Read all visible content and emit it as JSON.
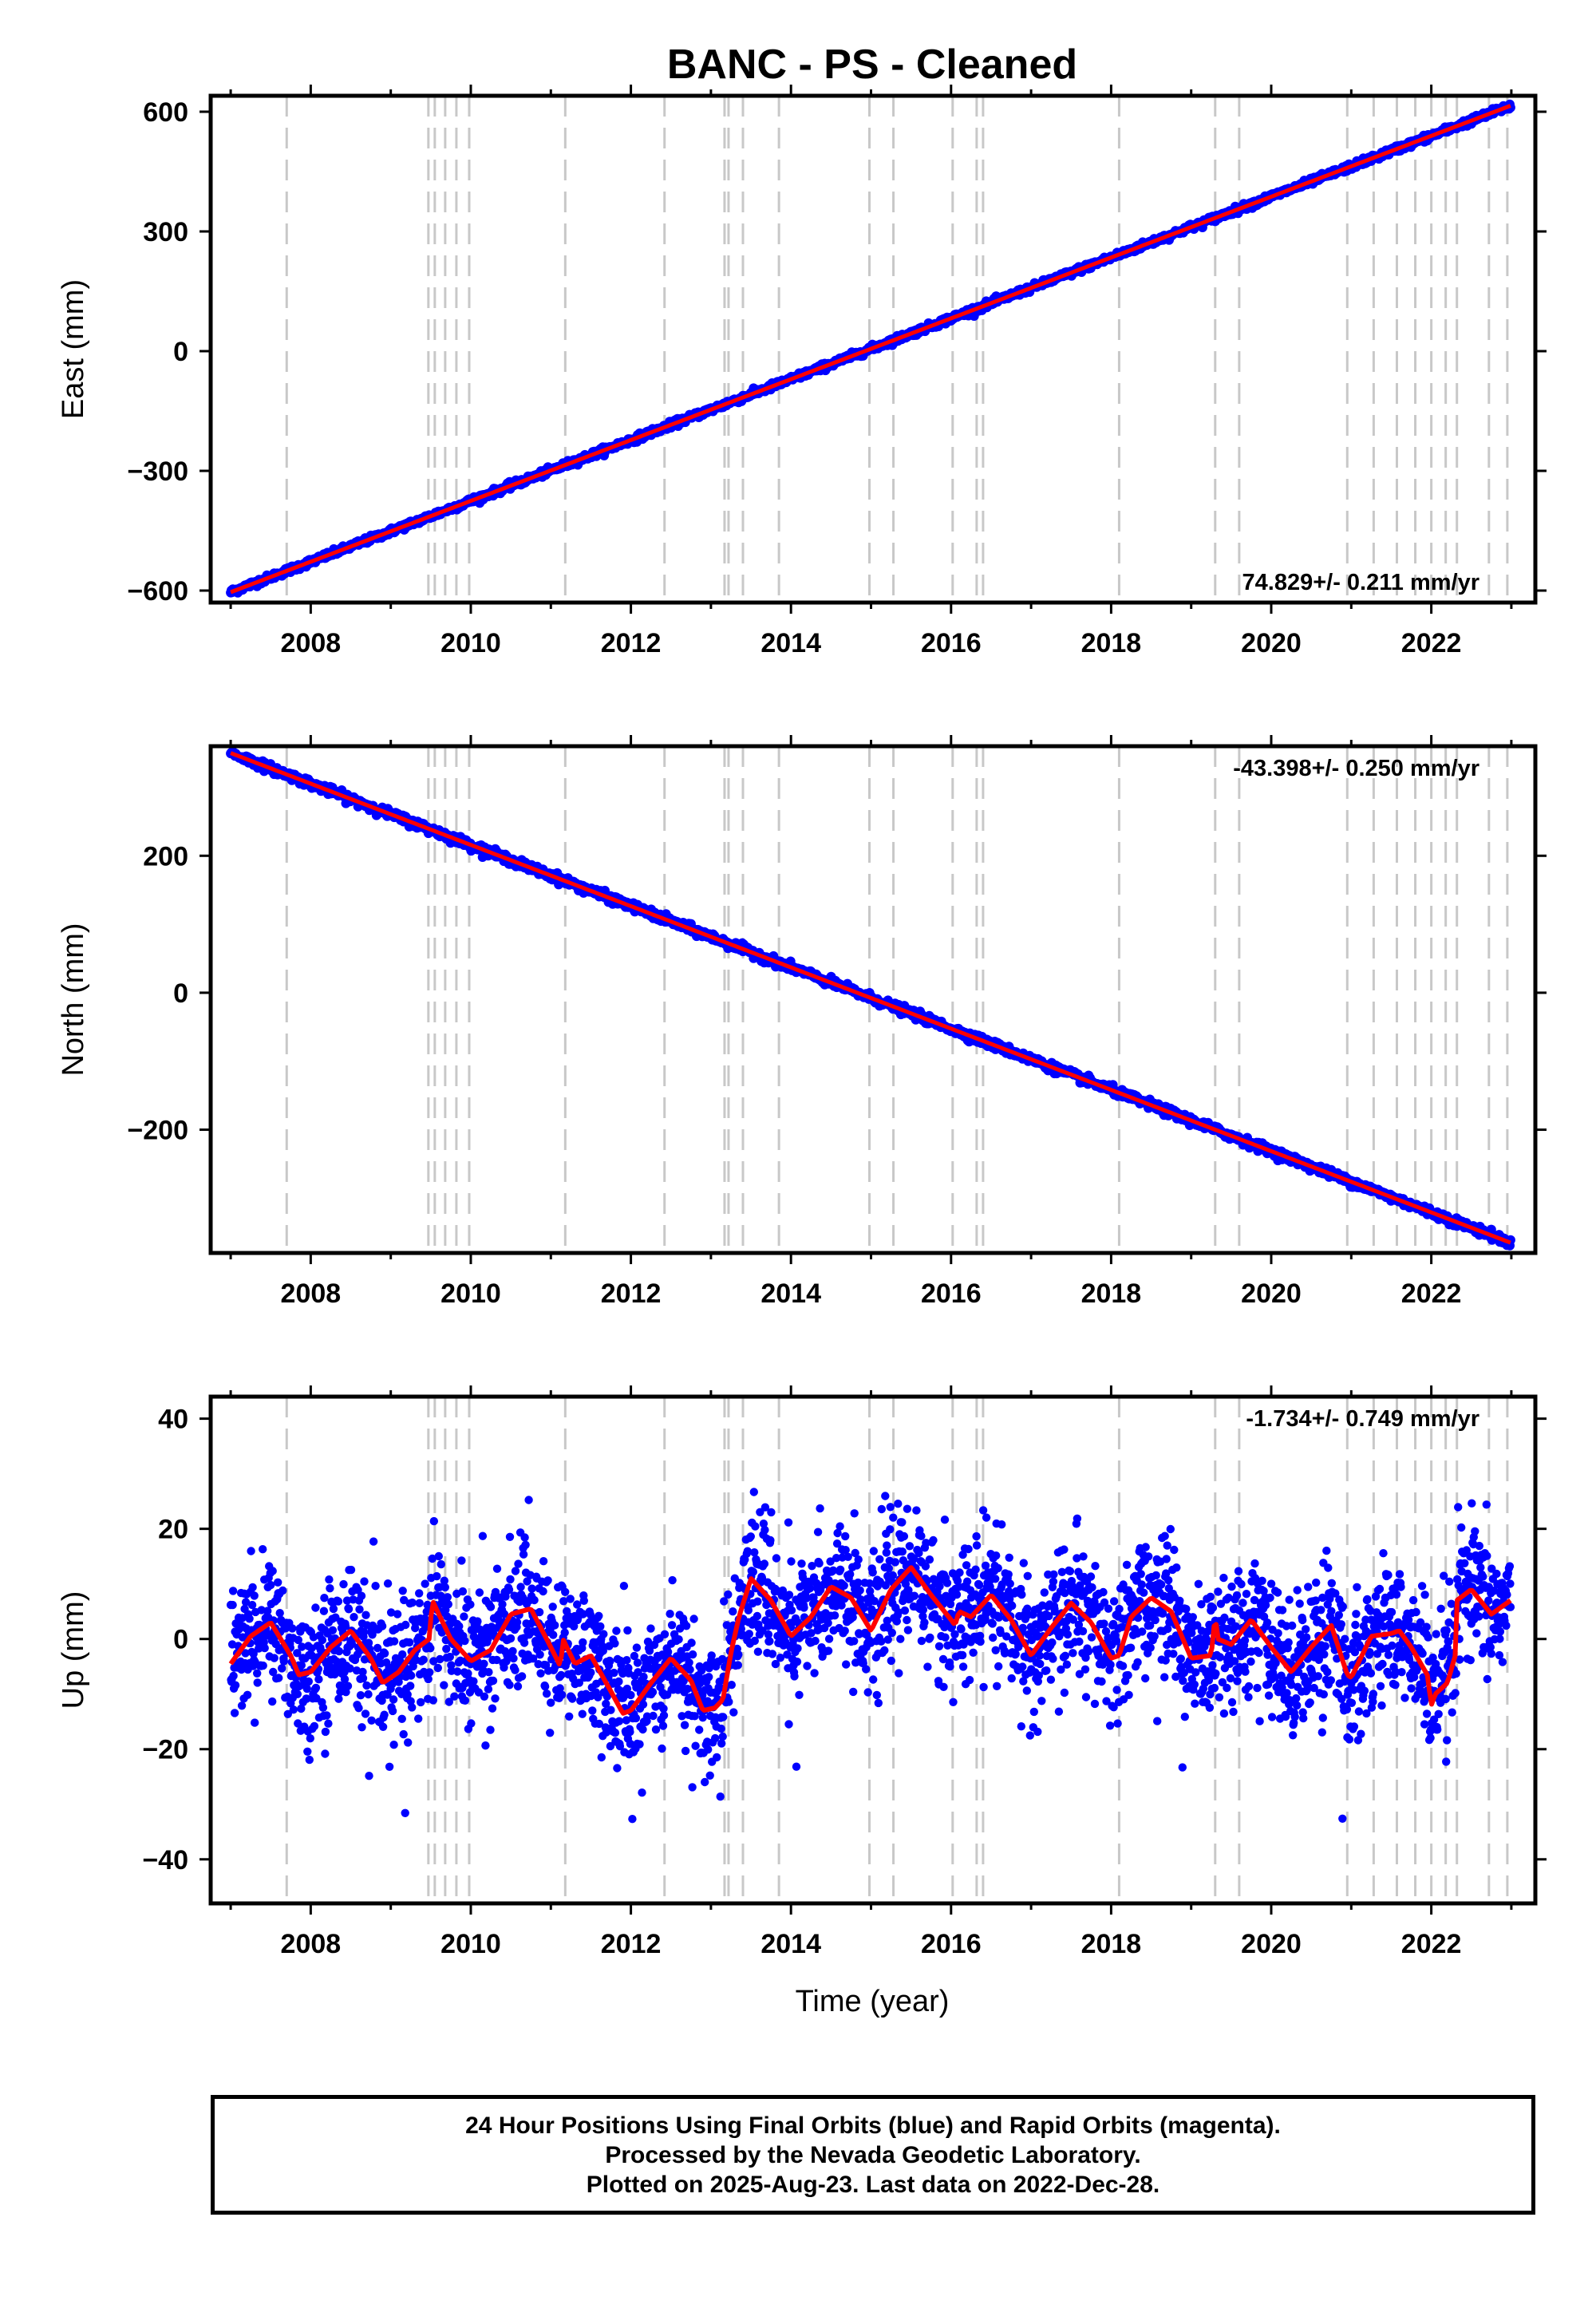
{
  "title": "BANC  - PS - Cleaned",
  "xlabel": "Time (year)",
  "footer": {
    "line1": "24 Hour Positions Using Final Orbits (blue) and Rapid Orbits (magenta).",
    "line2": "Processed by the Nevada Geodetic Laboratory.",
    "line3": "Plotted on 2025-Aug-23. Last data on 2022-Dec-28."
  },
  "colors": {
    "data": "#0000ff",
    "fit": "#ff0000",
    "events": "#c8c8c8",
    "frame": "#000000"
  },
  "chart_data": [
    {
      "type": "scatter",
      "component": "East",
      "ylabel": "East (mm)",
      "rate_label": "74.829+/- 0.211 mm/yr",
      "rate_placement": "bottom-right",
      "xlim": [
        2006.75,
        2023.3
      ],
      "ylim": [
        -630,
        640
      ],
      "xticks": [
        2008,
        2010,
        2012,
        2014,
        2016,
        2018,
        2020,
        2022
      ],
      "yticks": [
        -600,
        -300,
        0,
        300,
        600
      ],
      "ytick_labels": [
        "−600",
        "−300",
        "0",
        "300",
        "600"
      ],
      "start": [
        2007.0,
        -604
      ],
      "end": [
        2022.99,
        615
      ],
      "noise_mm": 4
    },
    {
      "type": "scatter",
      "component": "North",
      "ylabel": "North (mm)",
      "rate_label": "-43.398+/- 0.250 mm/yr",
      "rate_placement": "top-right",
      "xlim": [
        2006.75,
        2023.3
      ],
      "ylim": [
        -380,
        360
      ],
      "xticks": [
        2008,
        2010,
        2012,
        2014,
        2016,
        2018,
        2020,
        2022
      ],
      "yticks": [
        -200,
        0,
        200
      ],
      "ytick_labels": [
        "−200",
        "0",
        "200"
      ],
      "start": [
        2007.0,
        350
      ],
      "end": [
        2022.99,
        -365
      ],
      "noise_mm": 3
    },
    {
      "type": "scatter",
      "component": "Up",
      "ylabel": "Up (mm)",
      "rate_label": "-1.734+/- 0.749 mm/yr",
      "rate_placement": "top-right",
      "xlim": [
        2006.75,
        2023.3
      ],
      "ylim": [
        -48,
        44
      ],
      "xticks": [
        2008,
        2010,
        2012,
        2014,
        2016,
        2018,
        2020,
        2022
      ],
      "yticks": [
        -40,
        -20,
        0,
        20,
        40
      ],
      "ytick_labels": [
        "−40",
        "−20",
        "0",
        "20",
        "40"
      ],
      "noise_mm": 6,
      "fit_line": {
        "x": [
          2007.0,
          2007.25,
          2007.5,
          2007.75,
          2007.85,
          2008.0,
          2008.25,
          2008.5,
          2008.75,
          2008.9,
          2009.1,
          2009.3,
          2009.48,
          2009.52,
          2009.6,
          2009.75,
          2010.0,
          2010.25,
          2010.5,
          2010.75,
          2011.0,
          2011.12,
          2011.15,
          2011.3,
          2011.5,
          2011.75,
          2011.9,
          2012.0,
          2012.25,
          2012.5,
          2012.75,
          2012.9,
          2013.05,
          2013.15,
          2013.25,
          2013.35,
          2013.5,
          2013.75,
          2014.0,
          2014.25,
          2014.5,
          2014.75,
          2015.0,
          2015.25,
          2015.5,
          2015.75,
          2016.0,
          2016.05,
          2016.1,
          2016.25,
          2016.5,
          2016.75,
          2017.0,
          2017.25,
          2017.5,
          2017.75,
          2018.0,
          2018.1,
          2018.25,
          2018.5,
          2018.75,
          2019.0,
          2019.25,
          2019.3,
          2019.33,
          2019.5,
          2019.75,
          2020.0,
          2020.25,
          2020.5,
          2020.75,
          2020.95,
          2021.0,
          2021.25,
          2021.5,
          2021.6,
          2021.75,
          2021.95,
          2022.0,
          2022.05,
          2022.2,
          2022.3,
          2022.32,
          2022.5,
          2022.75,
          2022.99
        ],
        "y": [
          -4.5,
          0.5,
          3,
          -3,
          -6.5,
          -6,
          -1.5,
          1.5,
          -3.5,
          -8,
          -6,
          -2,
          0,
          7,
          4.5,
          0,
          -4,
          -2,
          4.5,
          5.5,
          -1.5,
          -5,
          0,
          -4.5,
          -3,
          -9.5,
          -13.5,
          -13,
          -8,
          -3.5,
          -7.5,
          -13,
          -12.5,
          -11,
          -2.5,
          4,
          11,
          7,
          0.5,
          4,
          9.5,
          7.5,
          1.5,
          9,
          13,
          8,
          3.5,
          2.5,
          5,
          4,
          8,
          3.5,
          -3,
          2,
          6.5,
          3,
          -3.5,
          -3,
          4,
          7.5,
          5,
          -3.5,
          -3,
          4.5,
          0,
          -1,
          3.5,
          -1.5,
          -6,
          -1.5,
          2.5,
          -6.5,
          -7,
          0.5,
          1,
          1.5,
          -1.5,
          -6.5,
          -12,
          -10,
          -8,
          -3,
          7,
          9,
          4.5,
          7
        ]
      }
    }
  ],
  "event_years": [
    2007.7,
    2009.47,
    2009.55,
    2009.68,
    2009.82,
    2009.98,
    2011.18,
    2012.42,
    2013.17,
    2013.22,
    2013.4,
    2013.85,
    2014.98,
    2015.28,
    2016.02,
    2016.32,
    2016.4,
    2018.1,
    2019.3,
    2019.6,
    2020.95,
    2021.28,
    2021.57,
    2021.8,
    2022.0,
    2022.18,
    2022.32,
    2022.72,
    2022.95
  ]
}
